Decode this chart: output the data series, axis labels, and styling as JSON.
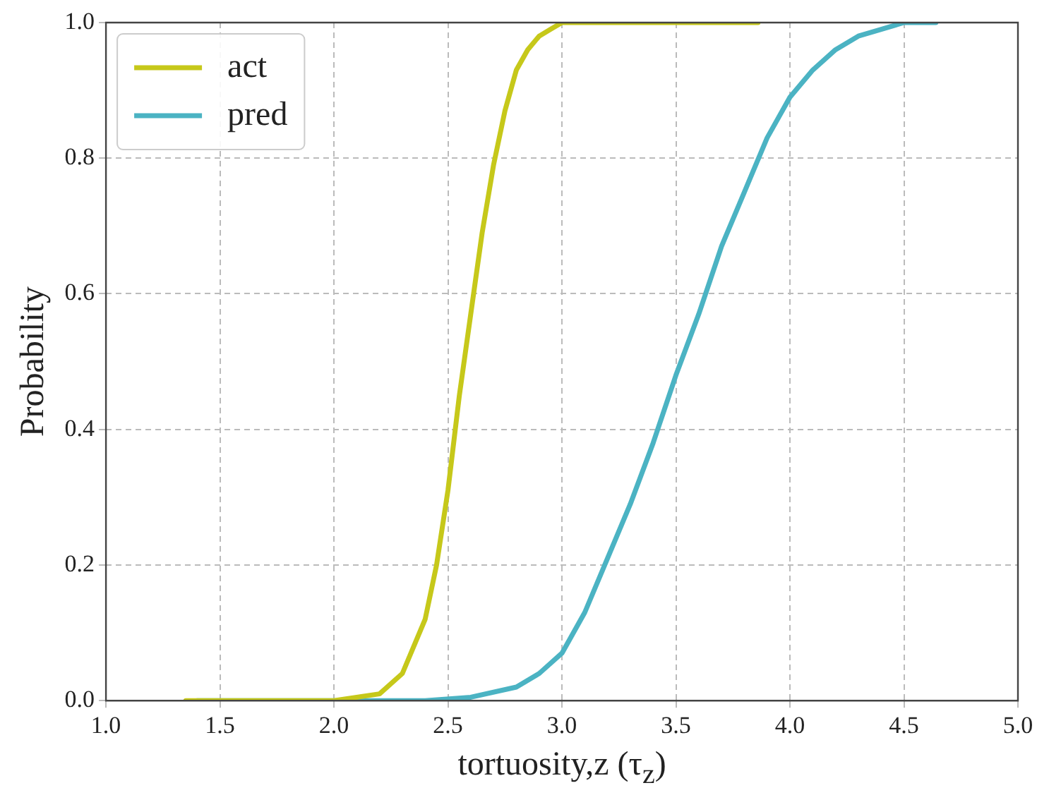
{
  "chart_data": {
    "type": "line",
    "xlabel": "tortuosity,z (τ$_{z}$)",
    "ylabel": "Probability",
    "xlim": [
      1.0,
      5.0
    ],
    "xticks": [
      {
        "value": 1,
        "label": "1.0"
      },
      1.5,
      {
        "value": 2,
        "label": "2.0"
      },
      2.5,
      {
        "value": 3,
        "label": "3.0"
      },
      3.5,
      {
        "value": 4,
        "label": "4.0"
      },
      4.5,
      {
        "value": 5,
        "label": "5.0"
      }
    ],
    "ylim": [
      0.0,
      1.0
    ],
    "yticks": [
      {
        "value": 0,
        "label": "0.0"
      },
      0.2,
      0.4,
      0.6,
      0.8,
      {
        "value": 1,
        "label": "1.0"
      }
    ],
    "grid": true,
    "legend": "top left",
    "marker": "none",
    "line_style": "solid",
    "series": [
      {
        "name": "act",
        "color": "#c6c81a",
        "x": [
          1.35,
          2.0,
          2.2,
          2.3,
          2.4,
          2.45,
          2.5,
          2.55,
          2.6,
          2.65,
          2.7,
          2.75,
          2.8,
          2.85,
          2.9,
          2.95,
          3.0,
          3.2,
          3.86
        ],
        "values": [
          0,
          0,
          0.01,
          0.04,
          0.12,
          0.2,
          0.31,
          0.45,
          0.57,
          0.69,
          0.79,
          0.87,
          0.93,
          0.96,
          0.98,
          0.99,
          1.0,
          1.0,
          1.0
        ]
      },
      {
        "name": "pred",
        "color": "#4bb3c3",
        "x": [
          1.4,
          2.4,
          2.6,
          2.8,
          2.9,
          3.0,
          3.1,
          3.2,
          3.3,
          3.4,
          3.5,
          3.6,
          3.7,
          3.8,
          3.9,
          4.0,
          4.1,
          4.2,
          4.3,
          4.4,
          4.5,
          4.64
        ],
        "values": [
          0,
          0,
          0.005,
          0.02,
          0.04,
          0.07,
          0.13,
          0.21,
          0.29,
          0.38,
          0.48,
          0.57,
          0.67,
          0.75,
          0.83,
          0.89,
          0.93,
          0.96,
          0.98,
          0.99,
          1.0,
          1.0
        ]
      }
    ]
  }
}
